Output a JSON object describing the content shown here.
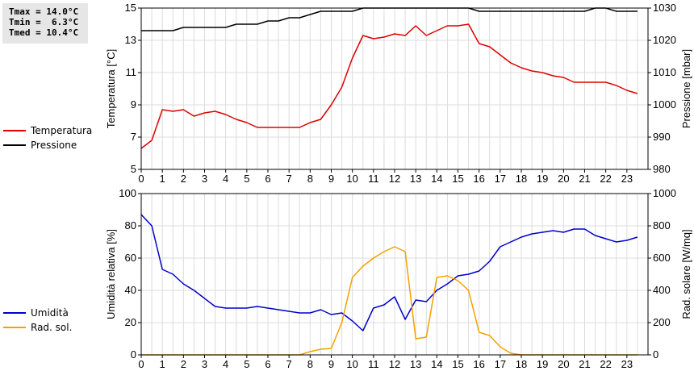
{
  "stats": {
    "tmax": "Tmax = 14.0°C",
    "tmin": "Tmin =  6.3°C",
    "tmed": "Tmed = 10.4°C"
  },
  "legend_top": [
    {
      "name": "Temperatura",
      "color": "#dd0000"
    },
    {
      "name": "Pressione",
      "color": "#000000"
    }
  ],
  "legend_bottom": [
    {
      "name": "Umidità",
      "color": "#0000cc"
    },
    {
      "name": "Rad. sol.",
      "color": "#f5a000"
    }
  ],
  "chart_data": [
    {
      "type": "line",
      "xlim": [
        0,
        24
      ],
      "xticks": [
        0,
        1,
        2,
        3,
        4,
        5,
        6,
        7,
        8,
        9,
        10,
        11,
        12,
        13,
        14,
        15,
        16,
        17,
        18,
        19,
        20,
        21,
        22,
        23
      ],
      "ylabel": "Temperatura [°C]",
      "ylim": [
        5,
        15
      ],
      "yticks": [
        5,
        7,
        9,
        11,
        13,
        15
      ],
      "y2label": "Pressione [mbar]",
      "y2lim": [
        980,
        1030
      ],
      "y2ticks": [
        980,
        990,
        1000,
        1010,
        1020,
        1030
      ],
      "grid": true,
      "series": [
        {
          "name": "Temperatura",
          "axis": "left",
          "color": "#dd0000",
          "x": [
            0,
            0.5,
            1,
            1.5,
            2,
            2.5,
            3,
            3.5,
            4,
            4.5,
            5,
            5.5,
            6,
            6.5,
            7,
            7.5,
            8,
            8.5,
            9,
            9.5,
            10,
            10.5,
            11,
            11.5,
            12,
            12.5,
            13,
            13.5,
            14,
            14.5,
            15,
            15.5,
            16,
            16.5,
            17,
            17.5,
            18,
            18.5,
            19,
            19.5,
            20,
            20.5,
            21,
            21.5,
            22,
            22.5,
            23,
            23.5
          ],
          "y": [
            6.3,
            6.8,
            8.7,
            8.6,
            8.7,
            8.3,
            8.5,
            8.6,
            8.4,
            8.1,
            7.9,
            7.6,
            7.6,
            7.6,
            7.6,
            7.6,
            7.9,
            8.1,
            9.0,
            10.1,
            11.9,
            13.3,
            13.1,
            13.2,
            13.4,
            13.3,
            13.9,
            13.3,
            13.6,
            13.9,
            13.9,
            14.0,
            12.8,
            12.6,
            12.1,
            11.6,
            11.3,
            11.1,
            11.0,
            10.8,
            10.7,
            10.4,
            10.4,
            10.4,
            10.4,
            10.2,
            9.9,
            9.7
          ]
        },
        {
          "name": "Pressione",
          "axis": "right",
          "color": "#000000",
          "x": [
            0,
            0.5,
            1,
            1.5,
            2,
            2.5,
            3,
            3.5,
            4,
            4.5,
            5,
            5.5,
            6,
            6.5,
            7,
            7.5,
            8,
            8.5,
            9,
            9.5,
            10,
            10.5,
            11,
            11.5,
            12,
            12.5,
            13,
            13.5,
            14,
            14.5,
            15,
            15.5,
            16,
            16.5,
            17,
            17.5,
            18,
            18.5,
            19,
            19.5,
            20,
            20.5,
            21,
            21.5,
            22,
            22.5,
            23,
            23.5
          ],
          "y": [
            1023,
            1023,
            1023,
            1023,
            1024,
            1024,
            1024,
            1024,
            1024,
            1025,
            1025,
            1025,
            1026,
            1026,
            1027,
            1027,
            1028,
            1029,
            1029,
            1029,
            1029,
            1030,
            1030,
            1030,
            1030,
            1030,
            1030,
            1030,
            1030,
            1030,
            1030,
            1030,
            1029,
            1029,
            1029,
            1029,
            1029,
            1029,
            1029,
            1029,
            1029,
            1029,
            1029,
            1030,
            1030,
            1029,
            1029,
            1029
          ]
        }
      ]
    },
    {
      "type": "line",
      "xlim": [
        0,
        24
      ],
      "xticks": [
        0,
        1,
        2,
        3,
        4,
        5,
        6,
        7,
        8,
        9,
        10,
        11,
        12,
        13,
        14,
        15,
        16,
        17,
        18,
        19,
        20,
        21,
        22,
        23
      ],
      "ylabel": "Umidità relativa [%]",
      "ylim": [
        0,
        100
      ],
      "yticks": [
        0,
        20,
        40,
        60,
        80,
        100
      ],
      "y2label": "Rad. solare [W/mq]",
      "y2lim": [
        0,
        1000
      ],
      "y2ticks": [
        0,
        200,
        400,
        600,
        800,
        1000
      ],
      "grid": true,
      "series": [
        {
          "name": "Umidità",
          "axis": "left",
          "color": "#0000cc",
          "x": [
            0,
            0.5,
            1,
            1.5,
            2,
            2.5,
            3,
            3.5,
            4,
            4.5,
            5,
            5.5,
            6,
            6.5,
            7,
            7.5,
            8,
            8.5,
            9,
            9.5,
            10,
            10.5,
            11,
            11.5,
            12,
            12.5,
            13,
            13.5,
            14,
            14.5,
            15,
            15.5,
            16,
            16.5,
            17,
            17.5,
            18,
            18.5,
            19,
            19.5,
            20,
            20.5,
            21,
            21.5,
            22,
            22.5,
            23,
            23.5
          ],
          "y": [
            87,
            80,
            53,
            50,
            44,
            40,
            35,
            30,
            29,
            29,
            29,
            30,
            29,
            28,
            27,
            26,
            26,
            28,
            25,
            26,
            21,
            15,
            29,
            31,
            36,
            22,
            34,
            33,
            40,
            44,
            49,
            50,
            52,
            58,
            67,
            70,
            73,
            75,
            76,
            77,
            76,
            78,
            78,
            74,
            72,
            70,
            71,
            73
          ]
        },
        {
          "name": "Rad. sol.",
          "axis": "right",
          "color": "#f5a000",
          "x": [
            0,
            1,
            2,
            3,
            4,
            5,
            6,
            7,
            7.5,
            8,
            8.5,
            9,
            9.5,
            10,
            10.5,
            11,
            11.5,
            12,
            12.5,
            13,
            13.5,
            14,
            14.5,
            15,
            15.5,
            16,
            16.5,
            17,
            17.5,
            18,
            19,
            20,
            21,
            22,
            23,
            23.5
          ],
          "y": [
            0,
            0,
            0,
            0,
            0,
            0,
            0,
            0,
            0,
            20,
            35,
            40,
            200,
            480,
            550,
            600,
            640,
            670,
            640,
            100,
            110,
            480,
            490,
            460,
            400,
            140,
            120,
            50,
            10,
            0,
            0,
            0,
            0,
            0,
            0,
            0
          ]
        }
      ]
    }
  ]
}
